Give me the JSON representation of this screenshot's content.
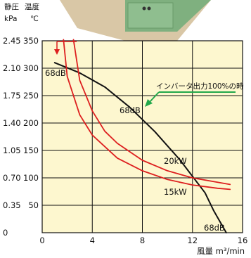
{
  "chart_data": {
    "type": "line",
    "y_header_pressure": "静圧",
    "y_header_temperature": "温度",
    "y_unit_pressure": "kPa",
    "y_unit_temperature": "℃",
    "xlabel": "風量 m³/min",
    "x_ticks": [
      "0",
      "4",
      "8",
      "12",
      "16"
    ],
    "xlim": [
      0,
      16
    ],
    "y_ticks_pressure": [
      "0",
      "0.35",
      "0.70",
      "1.05",
      "1.40",
      "1.75",
      "2.10",
      "2.45"
    ],
    "y_ticks_temperature": [
      "50",
      "100",
      "150",
      "200",
      "250",
      "300",
      "350"
    ],
    "ylim_pressure": [
      0,
      2.45
    ],
    "ylim_temperature": [
      0,
      350
    ],
    "grid": true,
    "series": [
      {
        "kind": "pressure",
        "name": "68dB",
        "color": "#111111",
        "points": [
          [
            1.0,
            2.17
          ],
          [
            3.0,
            2.04
          ],
          [
            5.0,
            1.86
          ],
          [
            7.0,
            1.6
          ],
          [
            9.0,
            1.29
          ],
          [
            11.0,
            0.93
          ],
          [
            13.0,
            0.51
          ],
          [
            13.7,
            0.28
          ],
          [
            14.7,
            0.0
          ]
        ]
      },
      {
        "kind": "temperature",
        "name": "20kW",
        "color": "#dd1f1f",
        "points": [
          [
            2.5,
            352
          ],
          [
            3.0,
            278
          ],
          [
            4.0,
            222
          ],
          [
            5.0,
            185
          ],
          [
            6.0,
            163
          ],
          [
            8.0,
            132
          ],
          [
            10.0,
            113
          ],
          [
            12.0,
            100
          ],
          [
            14.0,
            92
          ],
          [
            15.0,
            88
          ]
        ]
      },
      {
        "kind": "temperature",
        "name": "15kW",
        "color": "#dd1f1f",
        "points": [
          [
            1.7,
            352
          ],
          [
            2.0,
            285
          ],
          [
            3.0,
            215
          ],
          [
            4.0,
            178
          ],
          [
            6.0,
            136
          ],
          [
            8.0,
            113
          ],
          [
            10.0,
            97
          ],
          [
            12.0,
            87
          ],
          [
            14.0,
            81
          ],
          [
            15.0,
            79
          ]
        ]
      }
    ],
    "labels": {
      "db_top": "68dB",
      "db_mid": "68dB",
      "db_bottom": "68dB",
      "kw20": "20kW",
      "kw15": "15kW"
    },
    "annotation": "インバータ出力100%の時",
    "colors": {
      "plot_background": "#fdf7cf",
      "curve_red": "#dd1f1f",
      "annotation_arrow": "#22a84a",
      "device_green": "#7fb07f",
      "device_beige": "#d9c7a6"
    }
  }
}
